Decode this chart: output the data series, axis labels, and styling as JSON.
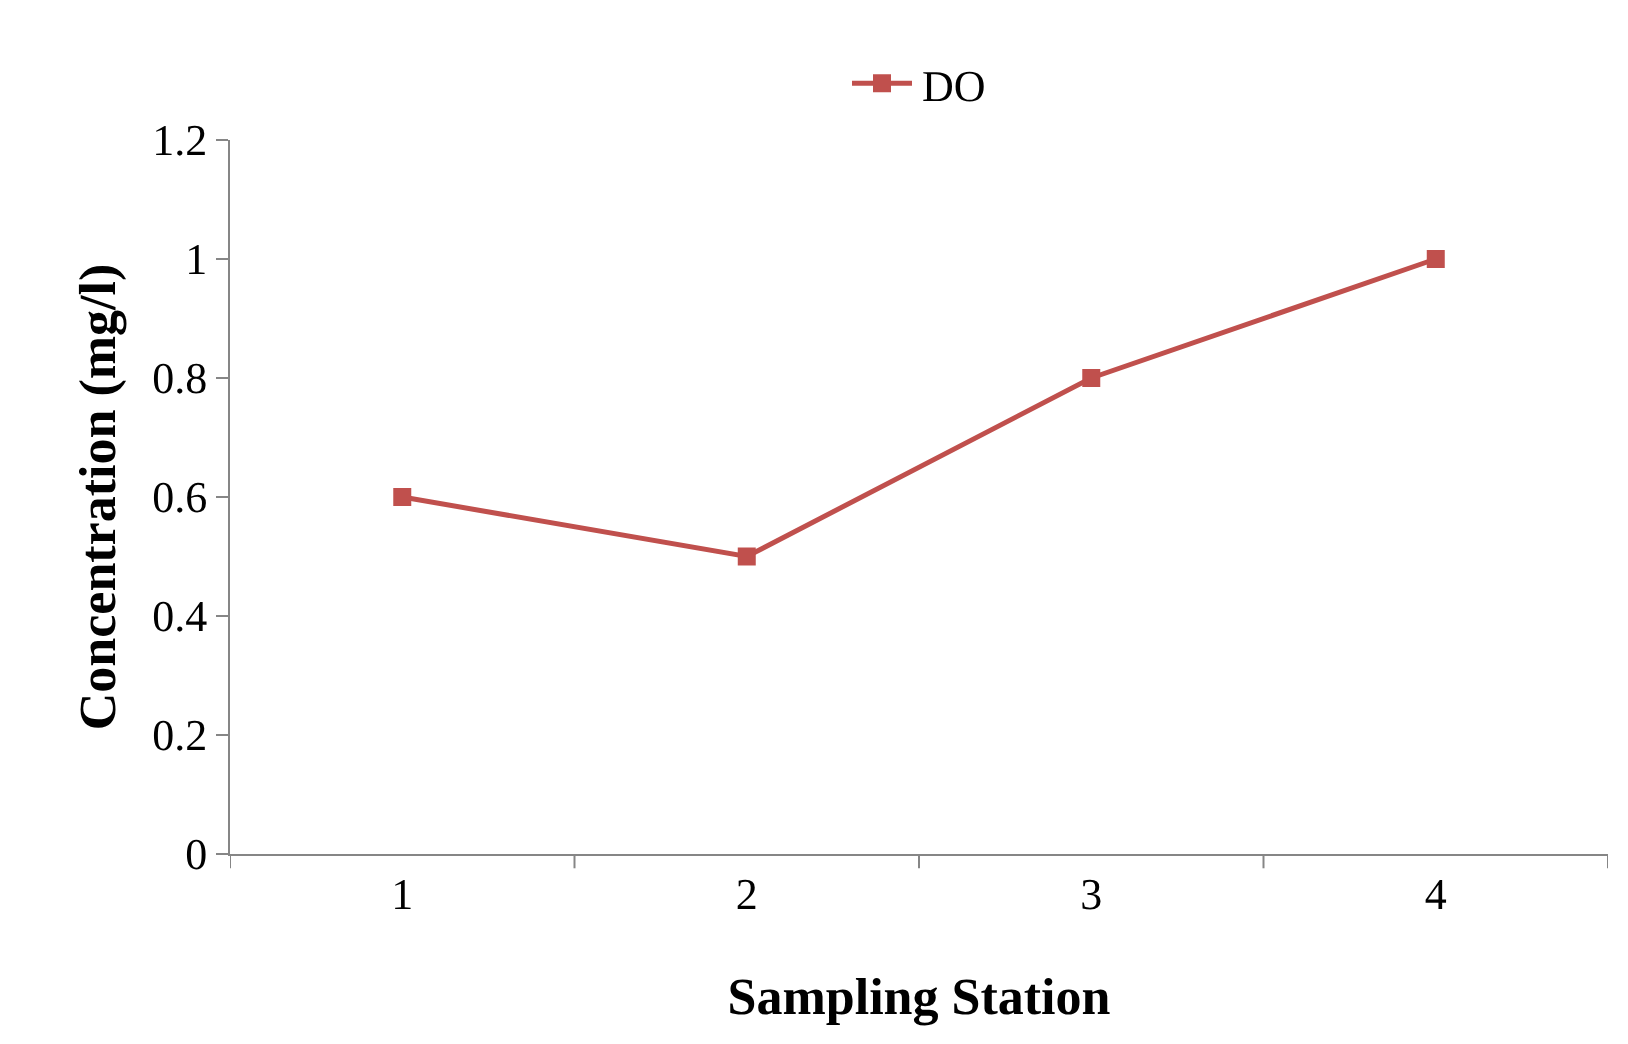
{
  "chart_data": {
    "type": "line",
    "xlabel": "Sampling Station",
    "ylabel": "Concentration (mg/l)",
    "categories": [
      "1",
      "2",
      "3",
      "4"
    ],
    "series": [
      {
        "name": "DO",
        "color": "#c0504d",
        "values": [
          0.6,
          0.5,
          0.8,
          1.0
        ]
      }
    ],
    "ylim": [
      0,
      1.2
    ],
    "yticks": [
      0,
      0.2,
      0.4,
      0.6,
      0.8,
      1,
      1.2
    ],
    "legend": "top",
    "marker": "square",
    "line_style": "solid"
  }
}
